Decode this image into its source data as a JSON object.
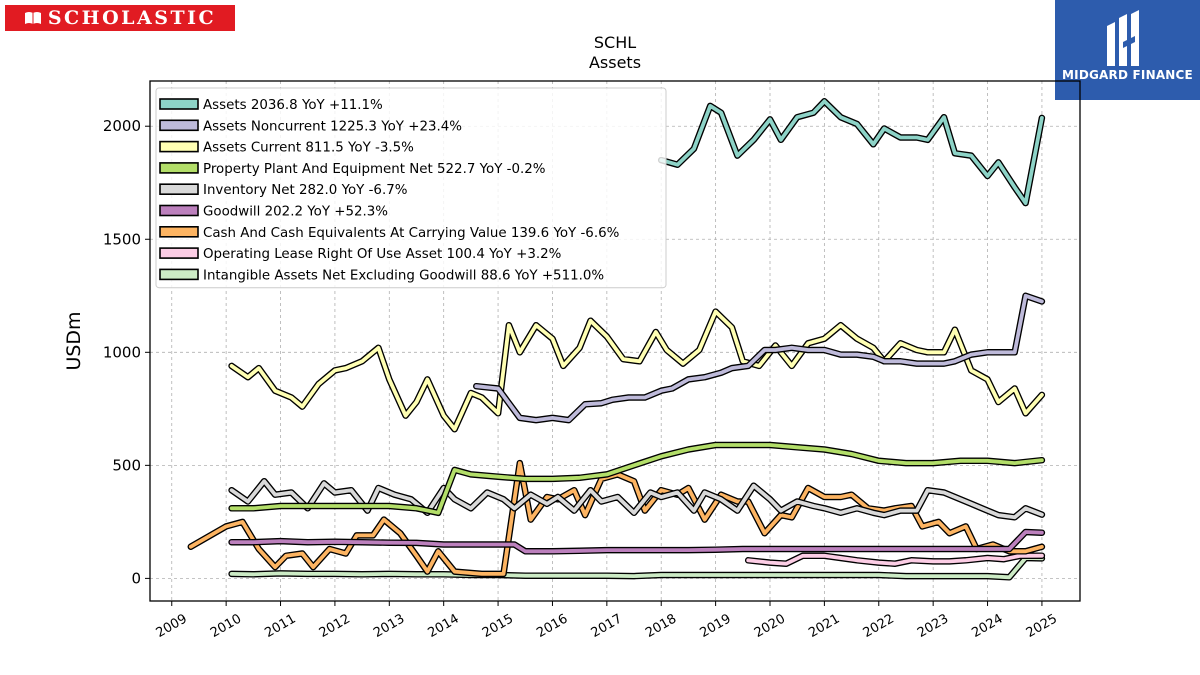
{
  "branding": {
    "left_logo_text": "SCHOLASTIC",
    "left_logo_color": "#e11b22",
    "right_logo_text": "MIDGARD FINANCE",
    "right_logo_color": "#2d5cad"
  },
  "chart_data": {
    "type": "line",
    "title": "SCHL",
    "subtitle": "Assets",
    "xlabel": "",
    "ylabel": "USDm",
    "xlim": [
      2008.6,
      2025.7
    ],
    "ylim": [
      -100,
      2200
    ],
    "xticks": [
      "2009",
      "2010",
      "2011",
      "2012",
      "2013",
      "2014",
      "2015",
      "2016",
      "2017",
      "2018",
      "2019",
      "2020",
      "2021",
      "2022",
      "2023",
      "2024",
      "2025"
    ],
    "yticks": [
      0,
      500,
      1000,
      1500,
      2000
    ],
    "grid": true,
    "legend_position": "top-left",
    "series": [
      {
        "name": "Assets",
        "legend": "Assets  2036.8 YoY +11.1%",
        "color": "#8dd3c7",
        "x": [
          2018.0,
          2018.3,
          2018.6,
          2018.9,
          2019.1,
          2019.4,
          2019.7,
          2020.0,
          2020.2,
          2020.5,
          2020.8,
          2021.0,
          2021.3,
          2021.6,
          2021.9,
          2022.1,
          2022.4,
          2022.7,
          2022.9,
          2023.2,
          2023.4,
          2023.7,
          2024.0,
          2024.2,
          2024.5,
          2024.7,
          2025.0
        ],
        "y": [
          1850,
          1830,
          1900,
          2090,
          2060,
          1870,
          1940,
          2030,
          1940,
          2040,
          2060,
          2110,
          2040,
          2010,
          1920,
          1990,
          1950,
          1950,
          1940,
          2040,
          1880,
          1870,
          1780,
          1840,
          1730,
          1660,
          2036.8
        ]
      },
      {
        "name": "Assets Noncurrent",
        "legend": "Assets Noncurrent  1225.3 YoY +23.4%",
        "color": "#bebada",
        "x": [
          2014.6,
          2015.0,
          2015.4,
          2015.7,
          2016.0,
          2016.3,
          2016.6,
          2016.9,
          2017.1,
          2017.4,
          2017.7,
          2018.0,
          2018.2,
          2018.5,
          2018.8,
          2019.1,
          2019.3,
          2019.6,
          2019.9,
          2020.1,
          2020.4,
          2020.7,
          2021.0,
          2021.3,
          2021.6,
          2021.9,
          2022.1,
          2022.4,
          2022.7,
          2022.9,
          2023.2,
          2023.4,
          2023.7,
          2024.0,
          2024.2,
          2024.5,
          2024.7,
          2025.0
        ],
        "y": [
          850,
          840,
          710,
          700,
          710,
          700,
          770,
          775,
          790,
          800,
          800,
          830,
          840,
          880,
          890,
          910,
          930,
          940,
          1010,
          1010,
          1020,
          1010,
          1010,
          990,
          990,
          980,
          960,
          960,
          950,
          950,
          950,
          960,
          990,
          1000,
          1000,
          1000,
          1250,
          1225.3
        ]
      },
      {
        "name": "Assets Current",
        "legend": "Assets Current  811.5 YoY -3.5%",
        "color": "#ffffb3",
        "x": [
          2010.1,
          2010.4,
          2010.6,
          2010.9,
          2011.2,
          2011.4,
          2011.7,
          2012.0,
          2012.2,
          2012.5,
          2012.8,
          2013.0,
          2013.3,
          2013.5,
          2013.7,
          2014.0,
          2014.2,
          2014.5,
          2014.7,
          2015.0,
          2015.2,
          2015.4,
          2015.7,
          2016.0,
          2016.2,
          2016.5,
          2016.7,
          2017.0,
          2017.3,
          2017.6,
          2017.9,
          2018.1,
          2018.4,
          2018.7,
          2019.0,
          2019.3,
          2019.5,
          2019.8,
          2020.1,
          2020.4,
          2020.7,
          2021.0,
          2021.3,
          2021.6,
          2021.9,
          2022.1,
          2022.4,
          2022.7,
          2022.9,
          2023.2,
          2023.4,
          2023.7,
          2024.0,
          2024.2,
          2024.5,
          2024.7,
          2025.0
        ],
        "y": [
          940,
          890,
          930,
          830,
          800,
          760,
          860,
          920,
          930,
          960,
          1020,
          880,
          720,
          780,
          880,
          720,
          660,
          820,
          800,
          730,
          1120,
          1000,
          1120,
          1060,
          940,
          1020,
          1140,
          1070,
          970,
          960,
          1090,
          1010,
          950,
          1010,
          1180,
          1110,
          960,
          940,
          1030,
          940,
          1040,
          1060,
          1120,
          1060,
          1020,
          960,
          1040,
          1010,
          1000,
          1000,
          1100,
          920,
          880,
          780,
          840,
          730,
          811.5
        ]
      },
      {
        "name": "Property Plant And Equipment Net",
        "legend": "Property Plant And Equipment Net  522.7 YoY -0.2%",
        "color": "#b3de69",
        "x": [
          2010.1,
          2010.5,
          2011.0,
          2011.5,
          2012.0,
          2012.5,
          2013.0,
          2013.5,
          2013.9,
          2014.2,
          2014.5,
          2015.0,
          2015.5,
          2016.0,
          2016.5,
          2017.0,
          2017.5,
          2018.0,
          2018.5,
          2019.0,
          2019.5,
          2020.0,
          2020.5,
          2021.0,
          2021.5,
          2022.0,
          2022.5,
          2023.0,
          2023.5,
          2024.0,
          2024.5,
          2025.0
        ],
        "y": [
          310,
          310,
          320,
          320,
          320,
          320,
          320,
          310,
          290,
          480,
          460,
          450,
          440,
          440,
          445,
          460,
          500,
          540,
          570,
          590,
          590,
          590,
          580,
          570,
          550,
          520,
          510,
          510,
          520,
          520,
          510,
          522.7
        ]
      },
      {
        "name": "Inventory Net",
        "legend": "Inventory Net  282.0 YoY -6.7%",
        "color": "#d9d9d9",
        "x": [
          2010.1,
          2010.4,
          2010.7,
          2010.9,
          2011.2,
          2011.5,
          2011.8,
          2012.0,
          2012.3,
          2012.6,
          2012.8,
          2013.1,
          2013.4,
          2013.7,
          2014.0,
          2014.2,
          2014.5,
          2014.8,
          2015.1,
          2015.3,
          2015.6,
          2015.9,
          2016.1,
          2016.4,
          2016.7,
          2016.9,
          2017.2,
          2017.5,
          2017.8,
          2018.0,
          2018.3,
          2018.6,
          2018.8,
          2019.1,
          2019.4,
          2019.7,
          2020.0,
          2020.2,
          2020.5,
          2020.8,
          2021.0,
          2021.3,
          2021.6,
          2021.9,
          2022.1,
          2022.4,
          2022.7,
          2022.9,
          2023.2,
          2023.4,
          2023.7,
          2024.0,
          2024.2,
          2024.5,
          2024.7,
          2025.0
        ],
        "y": [
          390,
          340,
          430,
          370,
          380,
          310,
          420,
          380,
          390,
          300,
          400,
          370,
          350,
          290,
          400,
          350,
          310,
          380,
          350,
          310,
          370,
          330,
          360,
          300,
          390,
          340,
          360,
          290,
          380,
          360,
          380,
          300,
          380,
          350,
          300,
          410,
          350,
          300,
          340,
          320,
          310,
          290,
          310,
          290,
          280,
          300,
          300,
          390,
          380,
          360,
          330,
          300,
          280,
          270,
          310,
          282.0
        ]
      },
      {
        "name": "Goodwill",
        "legend": "Goodwill  202.2 YoY +52.3%",
        "color": "#bc80bd",
        "x": [
          2010.1,
          2010.5,
          2011.0,
          2011.5,
          2012.0,
          2012.5,
          2013.0,
          2013.5,
          2014.0,
          2014.5,
          2015.0,
          2015.3,
          2015.5,
          2016.0,
          2016.5,
          2017.0,
          2017.5,
          2018.0,
          2018.5,
          2019.0,
          2019.5,
          2020.0,
          2020.5,
          2021.0,
          2021.5,
          2022.0,
          2022.5,
          2023.0,
          2023.5,
          2024.0,
          2024.4,
          2024.7,
          2025.0
        ],
        "y": [
          160,
          160,
          165,
          160,
          162,
          160,
          158,
          157,
          150,
          150,
          150,
          150,
          120,
          120,
          122,
          125,
          125,
          125,
          125,
          127,
          130,
          130,
          130,
          130,
          130,
          130,
          130,
          130,
          130,
          130,
          130,
          205,
          202.2
        ]
      },
      {
        "name": "Cash And Cash Equivalents At Carrying Value",
        "legend": "Cash And Cash Equivalents At Carrying Value  139.6 YoY -6.6%",
        "color": "#fdb462",
        "x": [
          2009.35,
          2010.0,
          2010.3,
          2010.6,
          2010.9,
          2011.1,
          2011.4,
          2011.6,
          2011.9,
          2012.2,
          2012.4,
          2012.7,
          2012.9,
          2013.2,
          2013.5,
          2013.7,
          2013.9,
          2014.2,
          2014.7,
          2015.1,
          2015.4,
          2015.6,
          2015.9,
          2016.1,
          2016.4,
          2016.6,
          2016.9,
          2017.2,
          2017.5,
          2017.7,
          2018.0,
          2018.3,
          2018.5,
          2018.8,
          2019.1,
          2019.4,
          2019.6,
          2019.9,
          2020.2,
          2020.4,
          2020.7,
          2021.0,
          2021.3,
          2021.5,
          2021.8,
          2022.1,
          2022.3,
          2022.6,
          2022.8,
          2023.1,
          2023.3,
          2023.6,
          2023.8,
          2024.1,
          2024.4,
          2024.7,
          2025.0
        ],
        "y": [
          140,
          230,
          250,
          130,
          50,
          100,
          110,
          50,
          130,
          110,
          190,
          190,
          260,
          200,
          100,
          30,
          120,
          30,
          20,
          20,
          510,
          260,
          360,
          350,
          390,
          280,
          440,
          460,
          430,
          300,
          390,
          370,
          400,
          260,
          370,
          340,
          340,
          200,
          280,
          270,
          400,
          360,
          360,
          370,
          310,
          300,
          310,
          320,
          230,
          250,
          200,
          230,
          130,
          150,
          120,
          120,
          139.6
        ]
      },
      {
        "name": "Operating Lease Right Of Use Asset",
        "legend": "Operating Lease Right Of Use Asset  100.4 YoY +3.2%",
        "color": "#fccde5",
        "x": [
          2019.6,
          2020.0,
          2020.3,
          2020.6,
          2021.0,
          2021.3,
          2021.6,
          2022.0,
          2022.3,
          2022.6,
          2023.0,
          2023.3,
          2023.6,
          2024.0,
          2024.3,
          2024.6,
          2025.0
        ],
        "y": [
          80,
          70,
          65,
          100,
          100,
          90,
          80,
          70,
          65,
          80,
          75,
          75,
          80,
          90,
          85,
          100,
          100.4
        ]
      },
      {
        "name": "Intangible Assets Net Excluding Goodwill",
        "legend": "Intangible Assets Net Excluding Goodwill  88.6 YoY +511.0%",
        "color": "#ccebc5",
        "x": [
          2010.1,
          2010.5,
          2011.0,
          2011.5,
          2012.0,
          2012.5,
          2013.0,
          2013.5,
          2014.0,
          2014.5,
          2015.0,
          2015.5,
          2016.0,
          2016.5,
          2017.0,
          2017.5,
          2018.0,
          2018.5,
          2019.0,
          2019.5,
          2020.0,
          2020.5,
          2021.0,
          2021.5,
          2022.0,
          2022.5,
          2023.0,
          2023.5,
          2024.0,
          2024.4,
          2024.7,
          2025.0
        ],
        "y": [
          20,
          18,
          22,
          20,
          20,
          18,
          20,
          18,
          18,
          15,
          15,
          12,
          12,
          12,
          12,
          10,
          15,
          15,
          15,
          15,
          15,
          15,
          15,
          15,
          15,
          10,
          10,
          10,
          10,
          5,
          90,
          88.6
        ]
      }
    ]
  }
}
